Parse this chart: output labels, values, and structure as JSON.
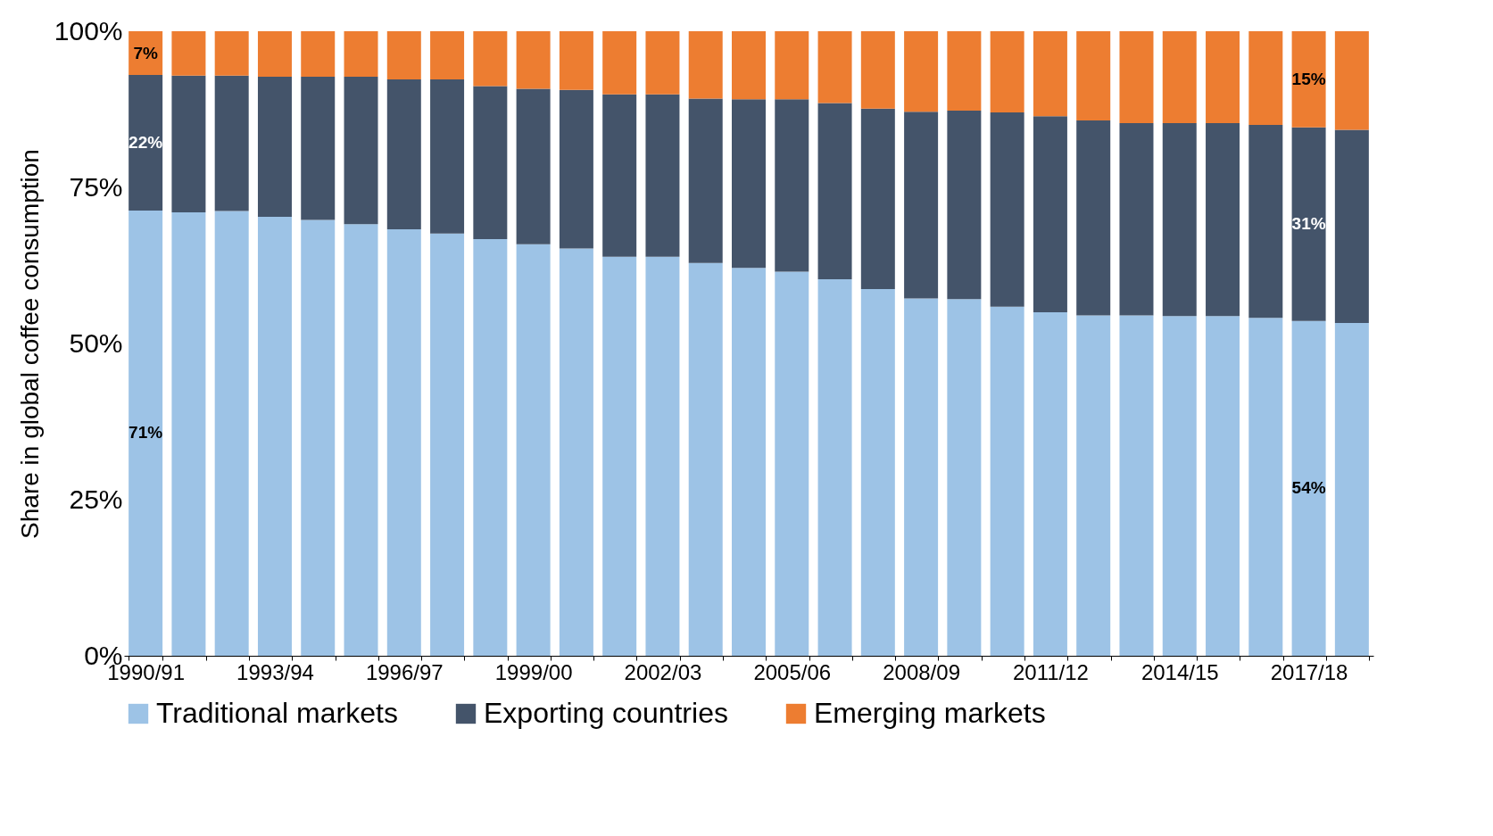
{
  "chart_data": {
    "type": "bar",
    "stacked": true,
    "ylabel": "Share in global coffee consumption",
    "categories": [
      "1990/91",
      null,
      null,
      "1993/94",
      null,
      null,
      "1996/97",
      null,
      null,
      "1999/00",
      null,
      null,
      "2002/03",
      null,
      null,
      "2005/06",
      null,
      null,
      "2008/09",
      null,
      null,
      "2011/12",
      null,
      null,
      "2014/15",
      null,
      null,
      "2017/18",
      null
    ],
    "series": [
      {
        "name": "Traditional markets",
        "color": "#9dc3e6",
        "values": [
          71.3,
          71.0,
          71.2,
          70.3,
          69.8,
          69.1,
          68.3,
          67.6,
          66.7,
          65.9,
          65.2,
          63.9,
          63.9,
          62.9,
          62.1,
          61.5,
          60.3,
          58.7,
          57.2,
          57.1,
          55.9,
          55.0,
          54.5,
          54.5,
          54.4,
          54.4,
          54.1,
          53.6,
          53.3
        ]
      },
      {
        "name": "Exporting countries",
        "color": "#44546a",
        "values": [
          21.7,
          21.9,
          21.7,
          22.4,
          22.9,
          23.6,
          24.0,
          24.7,
          24.5,
          24.9,
          25.4,
          26.0,
          26.0,
          26.3,
          27.0,
          27.6,
          28.2,
          28.9,
          29.9,
          30.2,
          31.1,
          31.4,
          31.2,
          30.8,
          30.9,
          30.9,
          30.9,
          31.0,
          30.9
        ]
      },
      {
        "name": "Emerging markets",
        "color": "#ed7d31",
        "values": [
          7.0,
          7.1,
          7.1,
          7.3,
          7.3,
          7.3,
          7.7,
          7.7,
          8.8,
          9.2,
          9.4,
          10.1,
          10.1,
          10.8,
          10.9,
          10.9,
          11.5,
          12.4,
          12.9,
          12.7,
          13.0,
          13.6,
          14.3,
          14.7,
          14.7,
          14.7,
          15.0,
          15.4,
          15.8
        ]
      }
    ],
    "ylim": [
      0,
      100
    ],
    "yticks": [
      {
        "value": 0,
        "label": "0%"
      },
      {
        "value": 25,
        "label": "25%"
      },
      {
        "value": 50,
        "label": "50%"
      },
      {
        "value": 75,
        "label": "75%"
      },
      {
        "value": 100,
        "label": "100%"
      }
    ],
    "grid": false,
    "legend": "bottom",
    "annotations": [
      "7%",
      "22%",
      "71%",
      "15%",
      "31%",
      "54%"
    ]
  }
}
